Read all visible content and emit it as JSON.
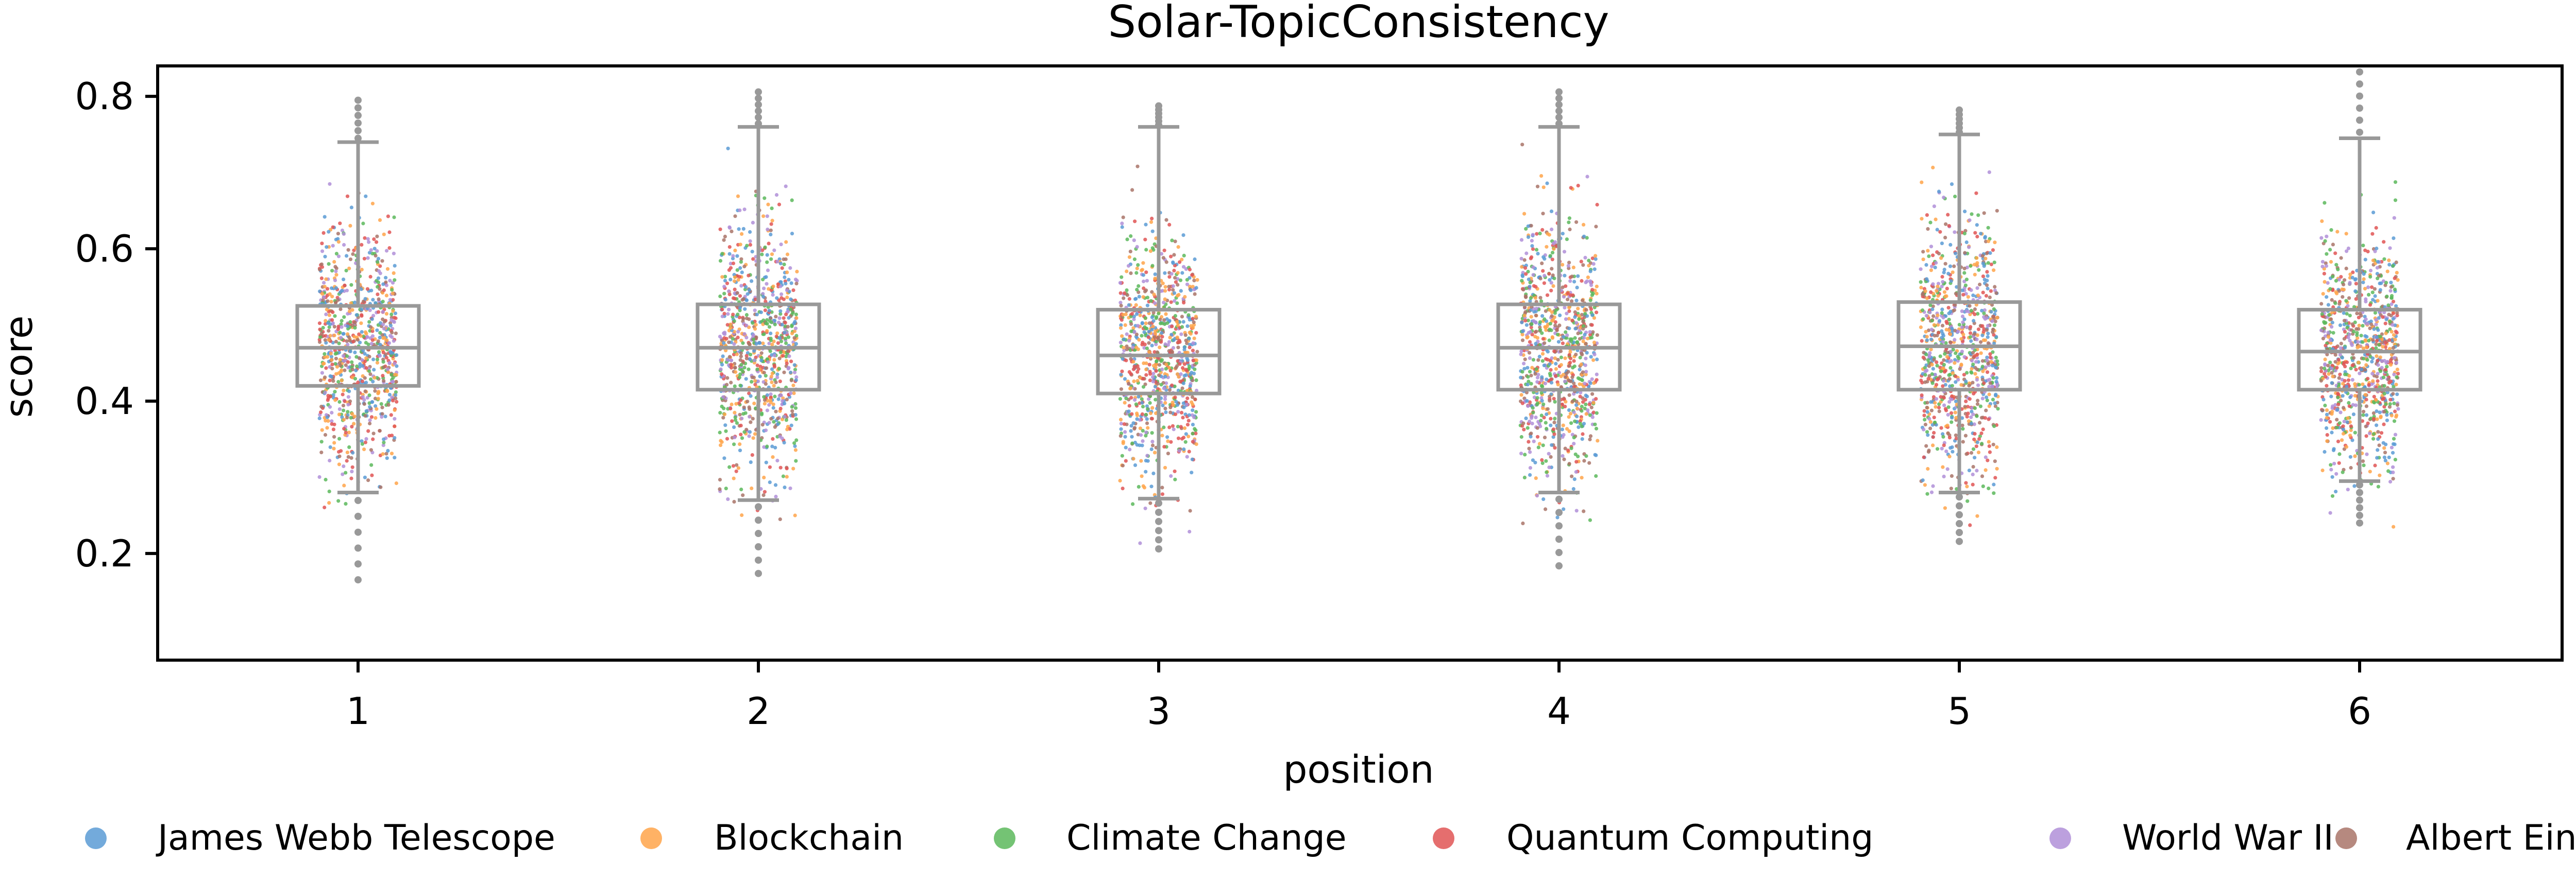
{
  "chart_data": {
    "type": "box-strip",
    "title": "Solar-TopicConsistency",
    "xlabel": "position",
    "ylabel": "score",
    "categories": [
      "1",
      "2",
      "3",
      "4",
      "5",
      "6"
    ],
    "ylim": [
      0.06,
      0.84
    ],
    "yticks": [
      0.2,
      0.4,
      0.6,
      0.8
    ],
    "ytick_labels": [
      "0.2",
      "0.4",
      "0.6",
      "0.8"
    ],
    "grid": false,
    "legend_position": "bottom",
    "box_color": "#999999",
    "series": [
      {
        "name": "James Webb Telescope",
        "color": "#5b9bd5"
      },
      {
        "name": "Blockchain",
        "color": "#ffa54a"
      },
      {
        "name": "Climate Change",
        "color": "#5cb85c"
      },
      {
        "name": "Quantum Computing",
        "color": "#e05555"
      },
      {
        "name": "World War II",
        "color": "#b08fd8"
      },
      {
        "name": "Albert Einstein",
        "color": "#a97468"
      }
    ],
    "boxes": [
      {
        "position": "1",
        "whisker_low": 0.28,
        "q1": 0.42,
        "median": 0.47,
        "q3": 0.525,
        "whisker_high": 0.74,
        "range_low": 0.155,
        "range_high": 0.8
      },
      {
        "position": "2",
        "whisker_low": 0.27,
        "q1": 0.415,
        "median": 0.47,
        "q3": 0.527,
        "whisker_high": 0.76,
        "range_low": 0.165,
        "range_high": 0.81
      },
      {
        "position": "3",
        "whisker_low": 0.272,
        "q1": 0.41,
        "median": 0.46,
        "q3": 0.52,
        "whisker_high": 0.76,
        "range_low": 0.2,
        "range_high": 0.79
      },
      {
        "position": "4",
        "whisker_low": 0.28,
        "q1": 0.415,
        "median": 0.47,
        "q3": 0.527,
        "whisker_high": 0.76,
        "range_low": 0.175,
        "range_high": 0.81
      },
      {
        "position": "5",
        "whisker_low": 0.28,
        "q1": 0.415,
        "median": 0.472,
        "q3": 0.53,
        "whisker_high": 0.75,
        "range_low": 0.21,
        "range_high": 0.785
      },
      {
        "position": "6",
        "whisker_low": 0.295,
        "q1": 0.415,
        "median": 0.465,
        "q3": 0.52,
        "whisker_high": 0.745,
        "range_low": 0.235,
        "range_high": 0.84
      }
    ]
  }
}
